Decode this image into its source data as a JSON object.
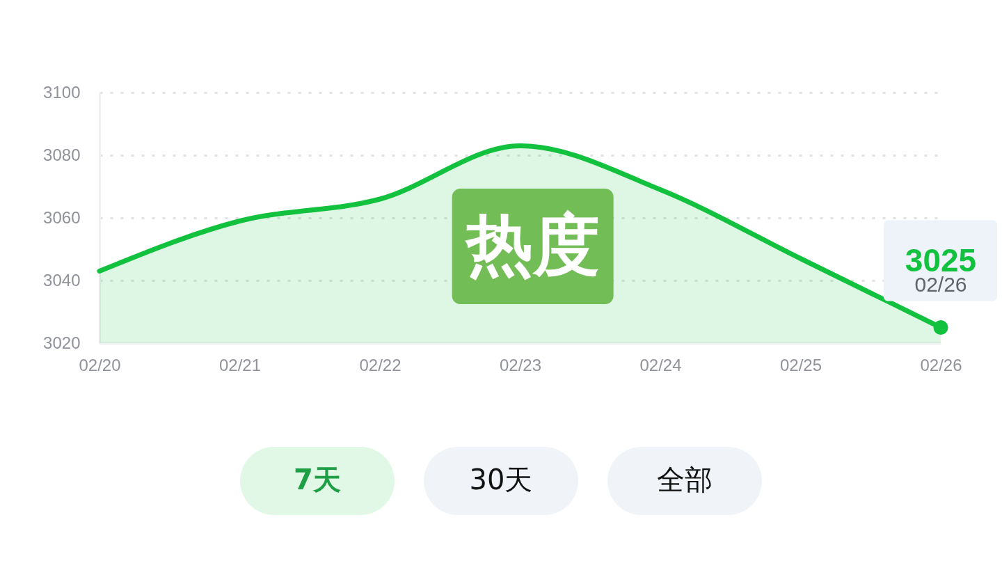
{
  "chart_data": {
    "type": "area",
    "title": "热度",
    "categories": [
      "02/20",
      "02/21",
      "02/22",
      "02/23",
      "02/24",
      "02/25",
      "02/26"
    ],
    "series": [
      {
        "color": "#12c13e",
        "values": [
          3043,
          3059,
          3066,
          3083,
          3069,
          3047,
          3025
        ],
        "value_labels": [
          null,
          null,
          null,
          null,
          null,
          null,
          "3025"
        ]
      }
    ],
    "ylim": [
      3020,
      3100
    ],
    "yticks": [
      3020,
      3040,
      3060,
      3080,
      3100
    ],
    "grid": "y",
    "line_style": "solid",
    "annotations": [
      "7天",
      "30天",
      "全部"
    ]
  }
}
